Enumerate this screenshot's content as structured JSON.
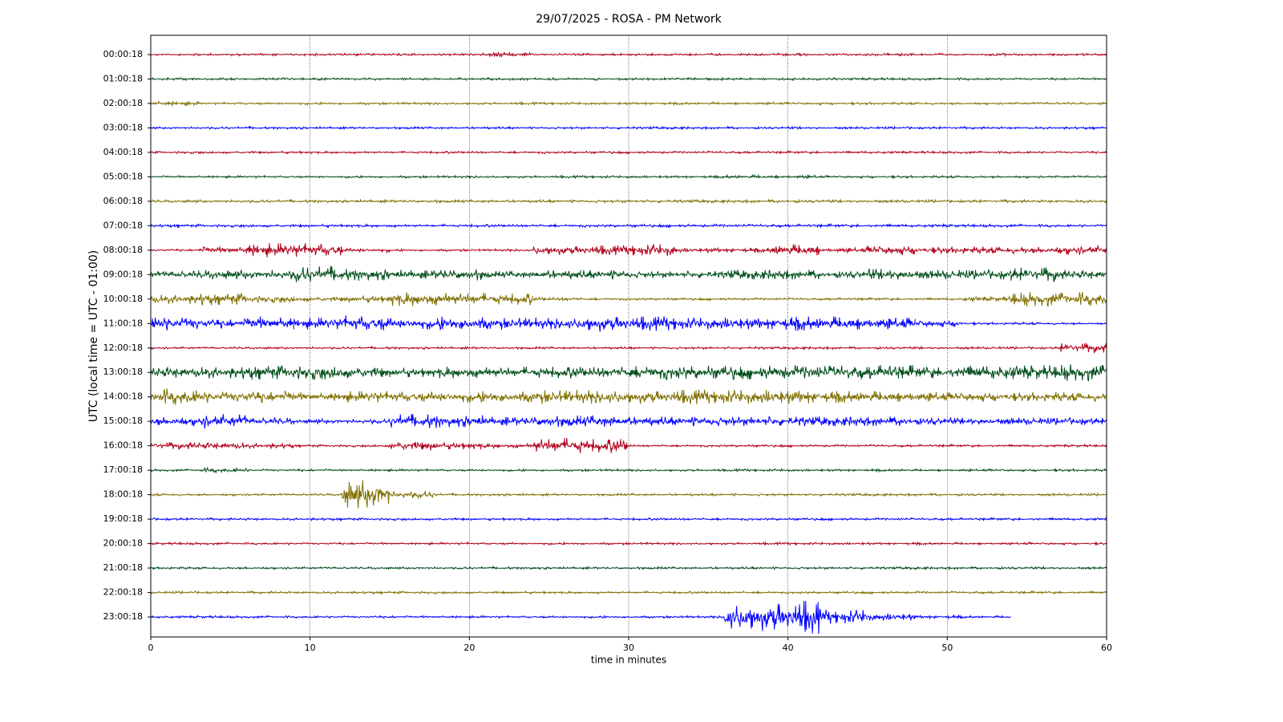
{
  "chart_data": {
    "type": "helicorder",
    "title": "29/07/2025 - ROSA - PM Network",
    "x_label": "time in minutes",
    "y_label": "UTC (local time = UTC - 01:00)",
    "xlim": [
      0,
      60
    ],
    "xticks": [
      0,
      10,
      20,
      30,
      40,
      50,
      60
    ],
    "grid": true,
    "colors": [
      "#b0001a",
      "#004d1a",
      "#7f6f00",
      "#0000ff"
    ],
    "bins": [
      0,
      3,
      6,
      9,
      12,
      15,
      18,
      21,
      24,
      27,
      30,
      33,
      36,
      39,
      42,
      45,
      48,
      51,
      54,
      57,
      60
    ],
    "categories": [
      "00:00:18",
      "01:00:18",
      "02:00:18",
      "03:00:18",
      "04:00:18",
      "05:00:18",
      "06:00:18",
      "07:00:18",
      "08:00:18",
      "09:00:18",
      "10:00:18",
      "11:00:18",
      "12:00:18",
      "13:00:18",
      "14:00:18",
      "15:00:18",
      "16:00:18",
      "17:00:18",
      "18:00:18",
      "19:00:18",
      "20:00:18",
      "21:00:18",
      "22:00:18",
      "23:00:18"
    ],
    "values": [
      [
        0.05,
        0.05,
        0.05,
        0.05,
        0.05,
        0.05,
        0.05,
        0.1,
        0.05,
        0.05,
        0.05,
        0.05,
        0.05,
        0.05,
        0.05,
        0.05,
        0.05,
        0.05,
        0.05,
        0.05
      ],
      [
        0.05,
        0.05,
        0.05,
        0.05,
        0.05,
        0.05,
        0.05,
        0.05,
        0.05,
        0.05,
        0.05,
        0.05,
        0.05,
        0.05,
        0.05,
        0.05,
        0.05,
        0.05,
        0.05,
        0.05
      ],
      [
        0.1,
        0.05,
        0.05,
        0.05,
        0.05,
        0.05,
        0.05,
        0.05,
        0.05,
        0.05,
        0.05,
        0.05,
        0.05,
        0.05,
        0.05,
        0.05,
        0.05,
        0.05,
        0.05,
        0.05
      ],
      [
        0.05,
        0.05,
        0.05,
        0.05,
        0.05,
        0.05,
        0.05,
        0.05,
        0.05,
        0.05,
        0.05,
        0.05,
        0.05,
        0.05,
        0.05,
        0.05,
        0.05,
        0.05,
        0.05,
        0.05
      ],
      [
        0.05,
        0.05,
        0.05,
        0.05,
        0.05,
        0.05,
        0.05,
        0.05,
        0.05,
        0.05,
        0.05,
        0.05,
        0.05,
        0.05,
        0.05,
        0.05,
        0.05,
        0.05,
        0.05,
        0.05
      ],
      [
        0.05,
        0.05,
        0.05,
        0.05,
        0.05,
        0.05,
        0.05,
        0.05,
        0.05,
        0.05,
        0.05,
        0.05,
        0.07,
        0.07,
        0.05,
        0.05,
        0.05,
        0.05,
        0.05,
        0.05
      ],
      [
        0.06,
        0.06,
        0.06,
        0.06,
        0.06,
        0.06,
        0.06,
        0.06,
        0.06,
        0.06,
        0.06,
        0.06,
        0.06,
        0.06,
        0.06,
        0.06,
        0.06,
        0.06,
        0.06,
        0.06
      ],
      [
        0.06,
        0.06,
        0.06,
        0.06,
        0.06,
        0.06,
        0.06,
        0.06,
        0.06,
        0.06,
        0.06,
        0.06,
        0.06,
        0.06,
        0.06,
        0.06,
        0.06,
        0.06,
        0.06,
        0.06
      ],
      [
        0.05,
        0.15,
        0.3,
        0.3,
        0.1,
        0.05,
        0.05,
        0.05,
        0.2,
        0.2,
        0.25,
        0.1,
        0.1,
        0.25,
        0.1,
        0.2,
        0.15,
        0.15,
        0.15,
        0.2
      ],
      [
        0.15,
        0.2,
        0.2,
        0.35,
        0.25,
        0.2,
        0.25,
        0.15,
        0.2,
        0.2,
        0.15,
        0.15,
        0.2,
        0.2,
        0.15,
        0.25,
        0.2,
        0.2,
        0.3,
        0.2
      ],
      [
        0.2,
        0.25,
        0.15,
        0.1,
        0.15,
        0.3,
        0.3,
        0.25,
        0.08,
        0.05,
        0.05,
        0.05,
        0.05,
        0.05,
        0.05,
        0.05,
        0.05,
        0.1,
        0.3,
        0.3
      ],
      [
        0.3,
        0.2,
        0.3,
        0.25,
        0.35,
        0.25,
        0.3,
        0.25,
        0.25,
        0.35,
        0.3,
        0.25,
        0.25,
        0.3,
        0.3,
        0.25,
        0.15,
        0.05,
        0.05,
        0.05
      ],
      [
        0.05,
        0.05,
        0.05,
        0.05,
        0.05,
        0.05,
        0.05,
        0.05,
        0.05,
        0.05,
        0.05,
        0.05,
        0.05,
        0.05,
        0.05,
        0.05,
        0.05,
        0.05,
        0.05,
        0.2
      ],
      [
        0.25,
        0.25,
        0.3,
        0.3,
        0.25,
        0.2,
        0.25,
        0.25,
        0.25,
        0.25,
        0.3,
        0.3,
        0.3,
        0.3,
        0.3,
        0.3,
        0.25,
        0.3,
        0.3,
        0.35
      ],
      [
        0.35,
        0.25,
        0.25,
        0.2,
        0.25,
        0.25,
        0.25,
        0.25,
        0.3,
        0.3,
        0.3,
        0.3,
        0.3,
        0.3,
        0.25,
        0.25,
        0.2,
        0.2,
        0.2,
        0.2
      ],
      [
        0.2,
        0.3,
        0.15,
        0.1,
        0.1,
        0.3,
        0.25,
        0.2,
        0.25,
        0.25,
        0.2,
        0.2,
        0.2,
        0.2,
        0.2,
        0.2,
        0.15,
        0.15,
        0.15,
        0.15
      ],
      [
        0.15,
        0.15,
        0.1,
        0.05,
        0.05,
        0.2,
        0.15,
        0.1,
        0.35,
        0.3,
        0.05,
        0.05,
        0.05,
        0.05,
        0.05,
        0.05,
        0.05,
        0.05,
        0.05,
        0.05
      ],
      [
        0.05,
        0.1,
        0.05,
        0.05,
        0.05,
        0.05,
        0.05,
        0.05,
        0.05,
        0.05,
        0.05,
        0.05,
        0.05,
        0.05,
        0.05,
        0.05,
        0.05,
        0.05,
        0.05,
        0.05
      ],
      [
        0.05,
        0.05,
        0.05,
        0.05,
        0.6,
        0.15,
        0.05,
        0.05,
        0.05,
        0.05,
        0.05,
        0.05,
        0.05,
        0.05,
        0.05,
        0.05,
        0.05,
        0.05,
        0.05,
        0.05
      ],
      [
        0.05,
        0.05,
        0.05,
        0.05,
        0.05,
        0.05,
        0.05,
        0.05,
        0.05,
        0.05,
        0.05,
        0.05,
        0.05,
        0.05,
        0.05,
        0.05,
        0.05,
        0.05,
        0.05,
        0.05
      ],
      [
        0.05,
        0.05,
        0.05,
        0.05,
        0.05,
        0.05,
        0.05,
        0.05,
        0.05,
        0.05,
        0.05,
        0.05,
        0.05,
        0.05,
        0.05,
        0.05,
        0.05,
        0.05,
        0.05,
        0.05
      ],
      [
        0.05,
        0.05,
        0.05,
        0.05,
        0.05,
        0.05,
        0.05,
        0.05,
        0.05,
        0.05,
        0.05,
        0.05,
        0.05,
        0.05,
        0.05,
        0.05,
        0.05,
        0.05,
        0.05,
        0.05
      ],
      [
        0.05,
        0.05,
        0.05,
        0.05,
        0.05,
        0.05,
        0.05,
        0.05,
        0.05,
        0.05,
        0.05,
        0.05,
        0.05,
        0.05,
        0.05,
        0.05,
        0.05,
        0.05,
        0.05,
        0.05
      ],
      [
        0.05,
        0.05,
        0.05,
        0.05,
        0.05,
        0.05,
        0.05,
        0.05,
        0.05,
        0.05,
        0.05,
        0.05,
        0.6,
        0.7,
        0.3,
        0.15,
        0.07,
        0.05,
        null,
        null
      ]
    ]
  }
}
